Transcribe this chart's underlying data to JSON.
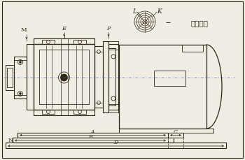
{
  "bg_color": "#f2ede4",
  "line_color": "#2a2515",
  "dim_color": "#2a2515",
  "title_text": "吸排气口",
  "label_M": "M",
  "label_E": "E",
  "label_P": "P",
  "label_N": "N",
  "label_A": "A",
  "label_B": "B",
  "label_D": "D",
  "label_C": "C",
  "label_L": "L",
  "label_K": "K",
  "figsize": [
    3.5,
    2.3
  ],
  "dpi": 100
}
